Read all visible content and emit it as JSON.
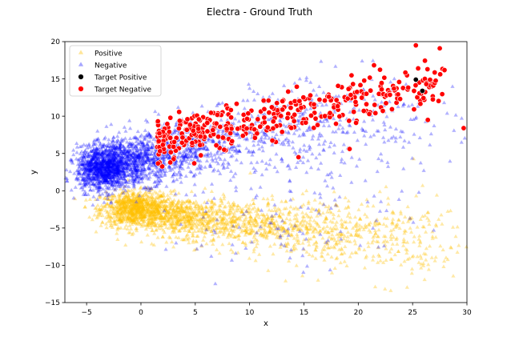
{
  "chart_data": {
    "type": "scatter",
    "title": "Electra  - Ground Truth",
    "xlabel": "x",
    "ylabel": "y",
    "xlim": [
      -7,
      30
    ],
    "ylim": [
      -15,
      20
    ],
    "xticks": [
      -5,
      0,
      5,
      10,
      15,
      20,
      25,
      30
    ],
    "yticks": [
      -15,
      -10,
      -5,
      0,
      5,
      10,
      15,
      20
    ],
    "xtick_labels": [
      "−5",
      "0",
      "5",
      "10",
      "15",
      "20",
      "25",
      "30"
    ],
    "ytick_labels": [
      "−15",
      "−10",
      "−5",
      "0",
      "5",
      "10",
      "15",
      "20"
    ],
    "grid": false,
    "legend_position": "upper-left",
    "series": [
      {
        "name": "Positive",
        "marker": "triangle",
        "color": "#ffc000",
        "opacity": 0.35,
        "clusters": [
          {
            "center": [
              -0.5,
              -2.5
            ],
            "spread": [
              1.6,
              1.2
            ],
            "count": 900
          },
          {
            "center": [
              4,
              -3.5
            ],
            "spread": [
              2.2,
              1.3
            ],
            "count": 550
          },
          {
            "center": [
              10,
              -4.5
            ],
            "spread": [
              3,
              1.6
            ],
            "count": 420
          },
          {
            "center": [
              17,
              -5.5
            ],
            "spread": [
              3.5,
              2.2
            ],
            "count": 330
          },
          {
            "center": [
              24,
              -6.5
            ],
            "spread": [
              3,
              3
            ],
            "count": 150
          }
        ]
      },
      {
        "name": "Negative",
        "marker": "triangle",
        "color": "#0000ff",
        "opacity": 0.3,
        "clusters": [
          {
            "center": [
              -3.5,
              3
            ],
            "spread": [
              1.2,
              1.5
            ],
            "count": 1100
          },
          {
            "center": [
              -0.5,
              4
            ],
            "spread": [
              1.8,
              1.6
            ],
            "count": 700
          },
          {
            "center": [
              4,
              5.5
            ],
            "spread": [
              2.4,
              1.8
            ],
            "count": 400
          },
          {
            "center": [
              11,
              7.5
            ],
            "spread": [
              3.5,
              2.2
            ],
            "count": 300
          },
          {
            "center": [
              20,
              9
            ],
            "spread": [
              4.5,
              3.5
            ],
            "count": 200
          },
          {
            "center": [
              14,
              -3
            ],
            "spread": [
              6,
              4
            ],
            "count": 120
          }
        ]
      },
      {
        "name": "Target Positive",
        "marker": "circle",
        "color": "#000000",
        "points": [
          [
            25.3,
            14.9
          ],
          [
            25.9,
            13.4
          ]
        ]
      },
      {
        "name": "Target Negative",
        "marker": "circle",
        "color": "#ff0000",
        "band": {
          "x_range": [
            1.5,
            28
          ],
          "y_at_xmin": 7.0,
          "y_at_xmax": 14.5,
          "spread": 2.0,
          "count": 380
        },
        "extra_points": [
          [
            2.7,
            3.8
          ],
          [
            14.5,
            4.5
          ],
          [
            19.2,
            5.6
          ],
          [
            25.3,
            19.5
          ],
          [
            27.5,
            19.1
          ],
          [
            29.7,
            8.4
          ],
          [
            26.4,
            9.5
          ]
        ]
      }
    ]
  }
}
